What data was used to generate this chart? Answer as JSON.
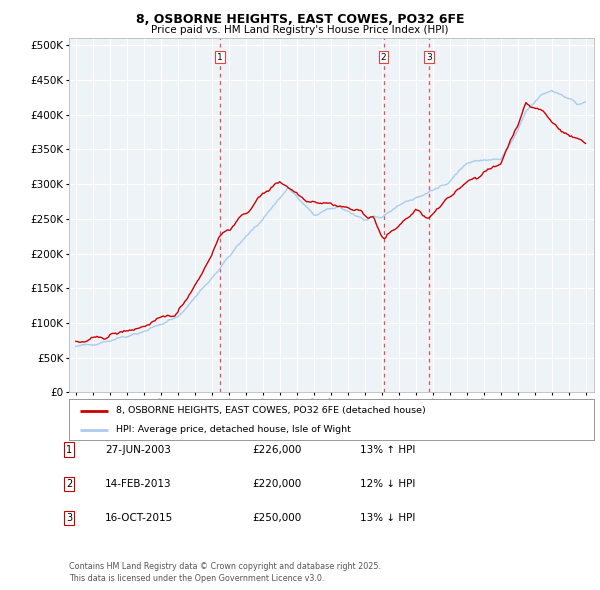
{
  "title": "8, OSBORNE HEIGHTS, EAST COWES, PO32 6FE",
  "subtitle": "Price paid vs. HM Land Registry's House Price Index (HPI)",
  "legend_line1": "8, OSBORNE HEIGHTS, EAST COWES, PO32 6FE (detached house)",
  "legend_line2": "HPI: Average price, detached house, Isle of Wight",
  "footer": "Contains HM Land Registry data © Crown copyright and database right 2025.\nThis data is licensed under the Open Government Licence v3.0.",
  "transactions": [
    {
      "num": 1,
      "date": "27-JUN-2003",
      "price": 226000,
      "pct": "13%",
      "dir": "↑",
      "x": 2003.49
    },
    {
      "num": 2,
      "date": "14-FEB-2013",
      "price": 220000,
      "pct": "12%",
      "dir": "↓",
      "x": 2013.12
    },
    {
      "num": 3,
      "date": "16-OCT-2015",
      "price": 250000,
      "pct": "13%",
      "dir": "↓",
      "x": 2015.79
    }
  ],
  "hpi_color": "#aaccee",
  "price_color": "#cc0000",
  "vline_color": "#dd4444",
  "grid_color": "#e0e8f0",
  "bg_color": "#ffffff",
  "ylim": [
    0,
    510000
  ],
  "yticks": [
    0,
    50000,
    100000,
    150000,
    200000,
    250000,
    300000,
    350000,
    400000,
    450000,
    500000
  ],
  "xlim": [
    1994.6,
    2025.5
  ],
  "hpi_anchors_x": [
    1995.0,
    1997.0,
    1999.0,
    2001.0,
    2003.0,
    2004.5,
    2006.0,
    2007.5,
    2009.0,
    2010.5,
    2012.0,
    2013.0,
    2014.0,
    2016.0,
    2017.0,
    2018.0,
    2019.0,
    2020.0,
    2021.0,
    2021.5,
    2022.5,
    2023.0,
    2024.0,
    2024.5,
    2025.0
  ],
  "hpi_anchors_y": [
    65000,
    75000,
    88000,
    108000,
    165000,
    210000,
    250000,
    295000,
    255000,
    268000,
    248000,
    252000,
    270000,
    290000,
    305000,
    330000,
    335000,
    335000,
    375000,
    405000,
    430000,
    435000,
    425000,
    415000,
    418000
  ],
  "price_anchors_x": [
    1995.0,
    1997.0,
    1999.0,
    2001.0,
    2002.5,
    2003.0,
    2003.49,
    2004.5,
    2006.0,
    2007.0,
    2008.5,
    2010.0,
    2011.5,
    2012.5,
    2013.12,
    2014.0,
    2015.0,
    2015.79,
    2016.5,
    2018.0,
    2019.0,
    2020.0,
    2021.5,
    2022.5,
    2023.0,
    2023.5,
    2024.0,
    2024.5,
    2025.0
  ],
  "price_anchors_y": [
    70000,
    82000,
    95000,
    115000,
    175000,
    200000,
    226000,
    245000,
    285000,
    305000,
    278000,
    272000,
    262000,
    252000,
    220000,
    240000,
    262000,
    250000,
    268000,
    305000,
    315000,
    330000,
    415000,
    405000,
    390000,
    380000,
    370000,
    365000,
    362000
  ]
}
